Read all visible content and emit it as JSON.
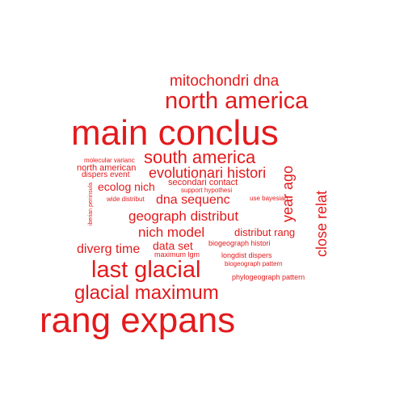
{
  "wordcloud": {
    "color": "#e31a1c",
    "words": [
      {
        "text": "mitochondri dna",
        "size": "large",
        "orientation": "horizontal"
      },
      {
        "text": "north america",
        "size": "x-large",
        "orientation": "horizontal"
      },
      {
        "text": "main conclus",
        "size": "largest",
        "orientation": "horizontal"
      },
      {
        "text": "south america",
        "size": "large",
        "orientation": "horizontal"
      },
      {
        "text": "molecular varianc",
        "size": "tiny",
        "orientation": "horizontal"
      },
      {
        "text": "north american",
        "size": "small",
        "orientation": "horizontal"
      },
      {
        "text": "dispers event",
        "size": "small",
        "orientation": "horizontal"
      },
      {
        "text": "evolutionari histori",
        "size": "large",
        "orientation": "horizontal"
      },
      {
        "text": "year ago",
        "size": "medium",
        "orientation": "vertical"
      },
      {
        "text": "ecolog nich",
        "size": "medium",
        "orientation": "horizontal"
      },
      {
        "text": "secondari contact",
        "size": "small",
        "orientation": "horizontal"
      },
      {
        "text": "support hypothesi",
        "size": "tiny",
        "orientation": "horizontal"
      },
      {
        "text": "iberian peninsula",
        "size": "tiny",
        "orientation": "vertical"
      },
      {
        "text": "wide distribut",
        "size": "tiny",
        "orientation": "horizontal"
      },
      {
        "text": "dna sequenc",
        "size": "medium",
        "orientation": "horizontal"
      },
      {
        "text": "use bayesian",
        "size": "tiny",
        "orientation": "horizontal"
      },
      {
        "text": "close relat",
        "size": "medium",
        "orientation": "vertical"
      },
      {
        "text": "geograph distribut",
        "size": "medium",
        "orientation": "horizontal"
      },
      {
        "text": "nich model",
        "size": "medium",
        "orientation": "horizontal"
      },
      {
        "text": "distribut rang",
        "size": "small",
        "orientation": "horizontal"
      },
      {
        "text": "diverg time",
        "size": "medium",
        "orientation": "horizontal"
      },
      {
        "text": "data set",
        "size": "medium",
        "orientation": "horizontal"
      },
      {
        "text": "biogeograph histori",
        "size": "tiny",
        "orientation": "horizontal"
      },
      {
        "text": "maximum lgm",
        "size": "tiny",
        "orientation": "horizontal"
      },
      {
        "text": "longdist dispers",
        "size": "tiny",
        "orientation": "horizontal"
      },
      {
        "text": "biogeograph pattern",
        "size": "tiny",
        "orientation": "horizontal"
      },
      {
        "text": "last glacial",
        "size": "x-large",
        "orientation": "horizontal"
      },
      {
        "text": "phylogeograph pattern",
        "size": "tiny",
        "orientation": "horizontal"
      },
      {
        "text": "glacial maximum",
        "size": "large",
        "orientation": "horizontal"
      },
      {
        "text": "rang expans",
        "size": "largest",
        "orientation": "horizontal"
      }
    ]
  }
}
